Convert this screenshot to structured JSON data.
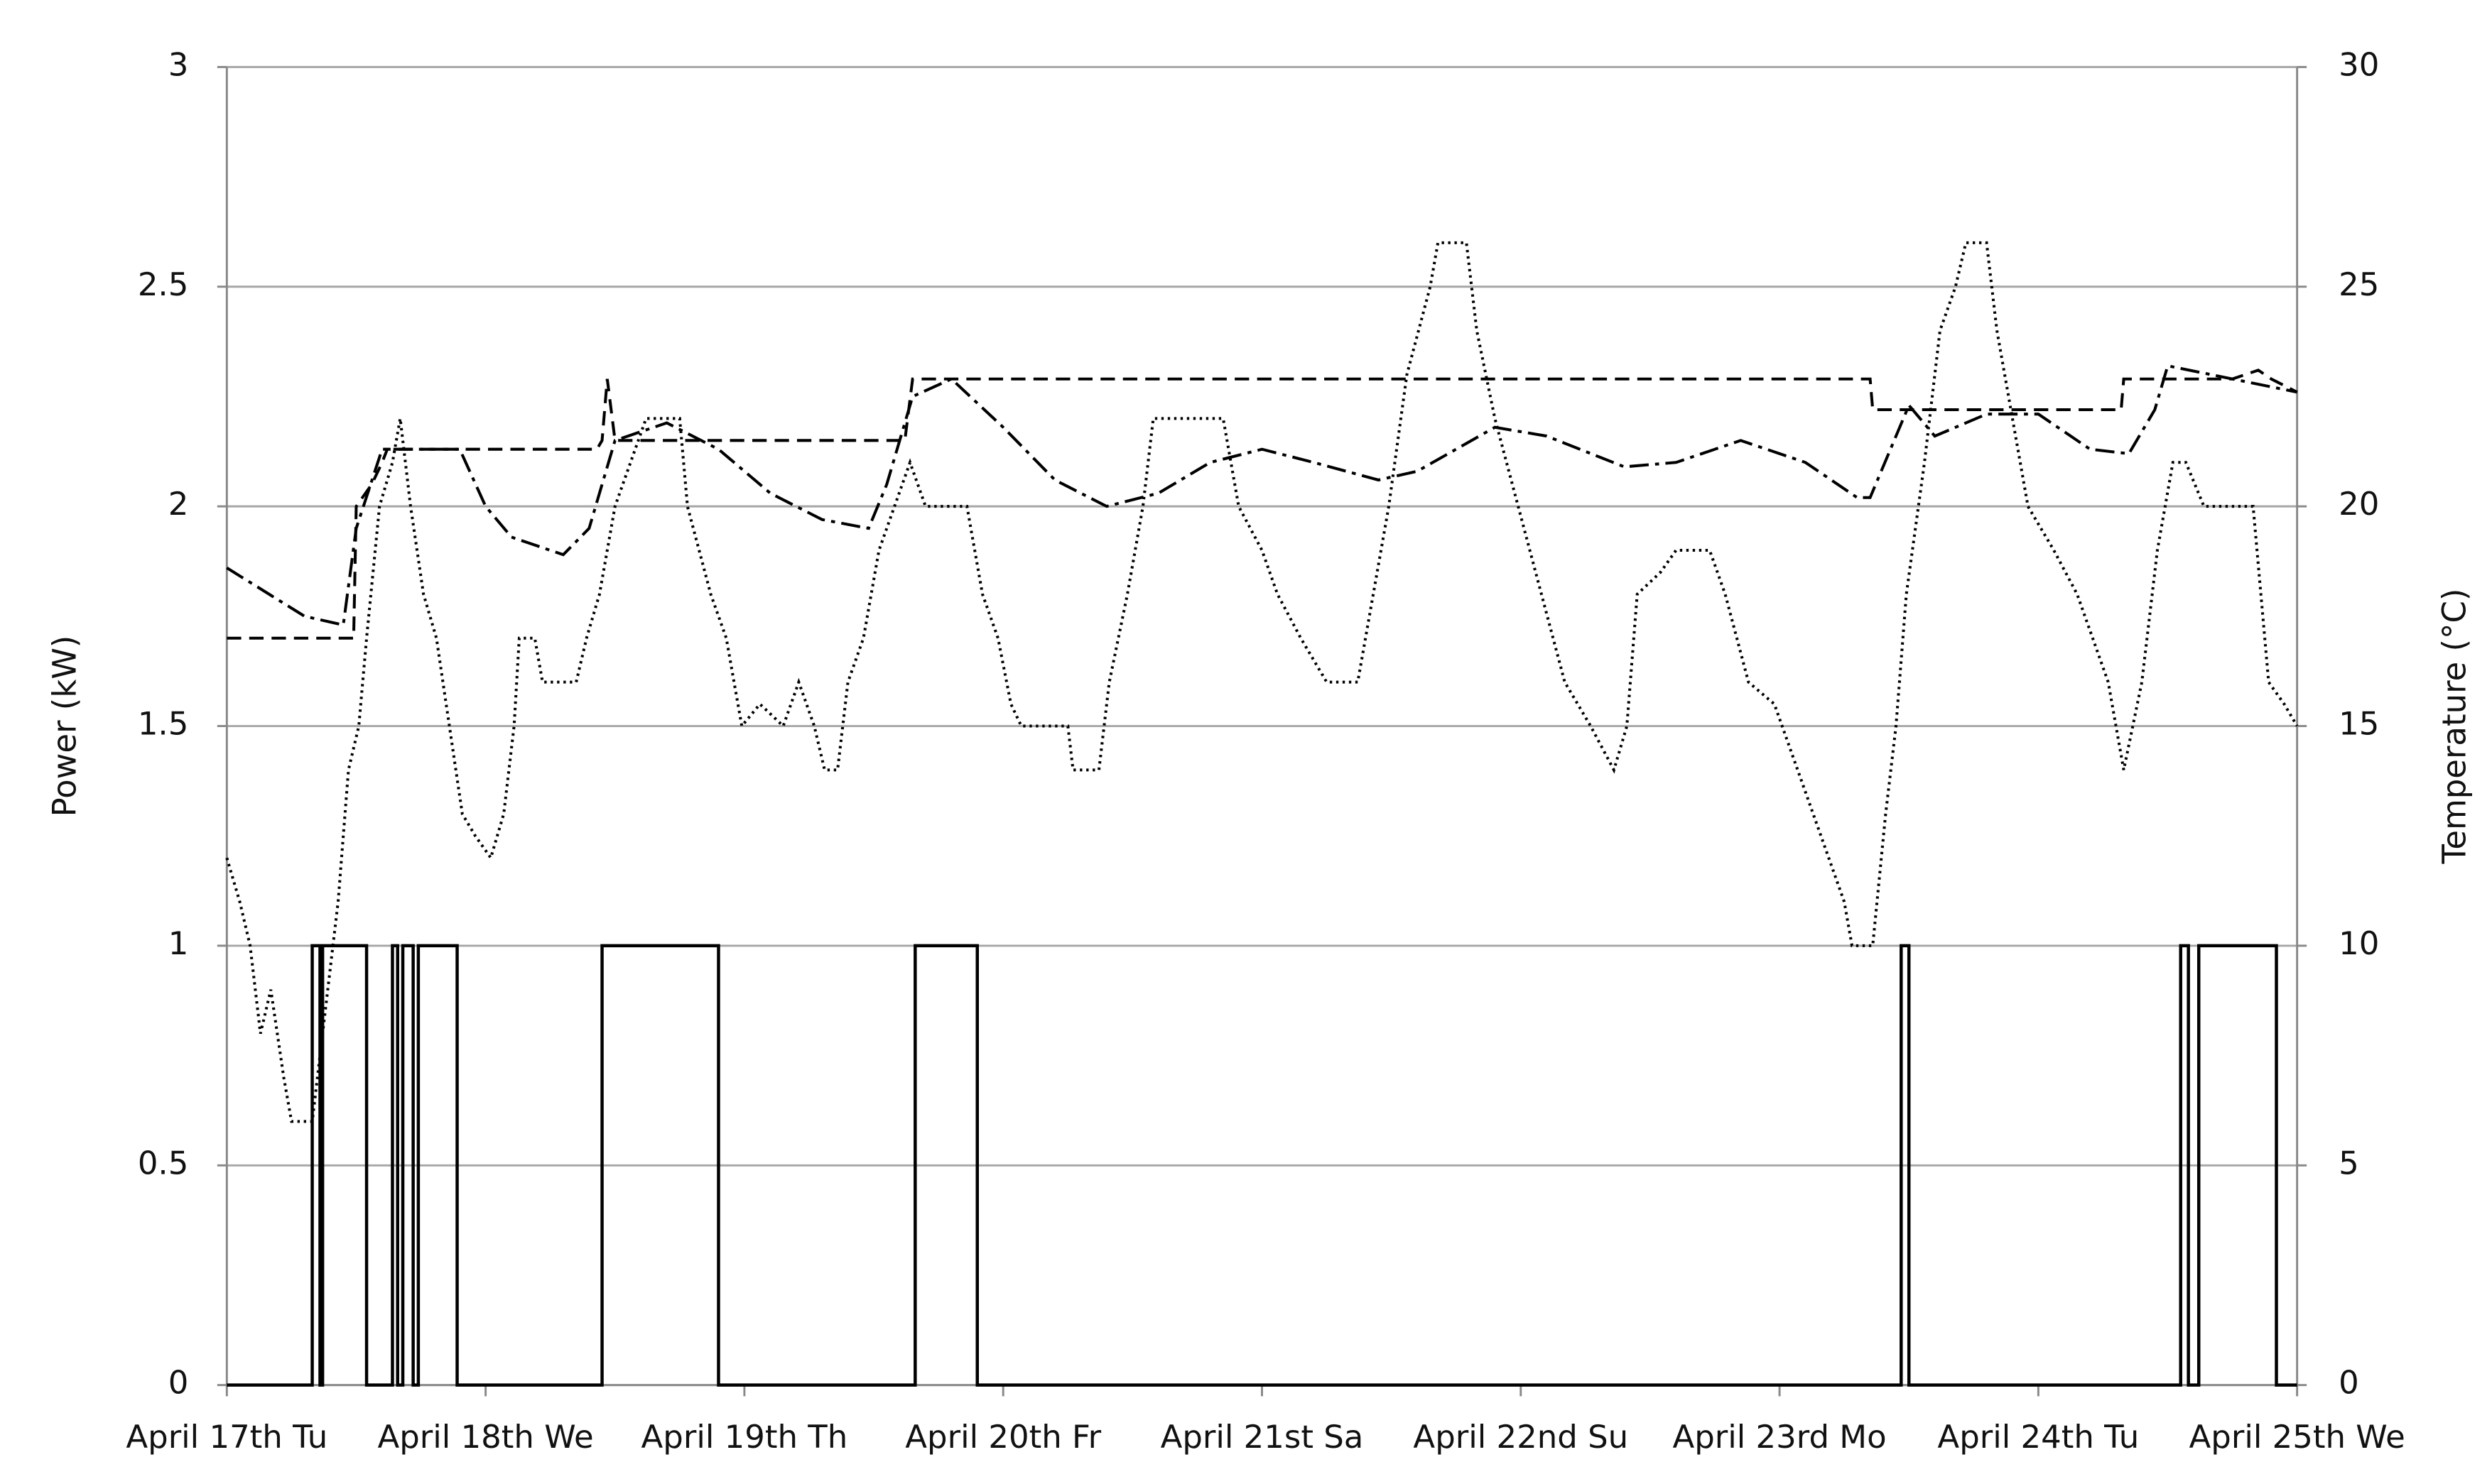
{
  "chart_data": {
    "type": "line",
    "xlabel": null,
    "ylabel": "Power (kW)",
    "y2label": "Temperature (°C)",
    "xlim": [
      0,
      8
    ],
    "xticks": [
      {
        "value": 0,
        "label": "April 17th Tu"
      },
      {
        "value": 1,
        "label": "April 18th We"
      },
      {
        "value": 2,
        "label": "April 19th Th"
      },
      {
        "value": 3,
        "label": "April 20th Fr"
      },
      {
        "value": 4,
        "label": "April 21st Sa"
      },
      {
        "value": 5,
        "label": "April 22nd Su"
      },
      {
        "value": 6,
        "label": "April 23rd Mo"
      },
      {
        "value": 7,
        "label": "April 24th Tu"
      },
      {
        "value": 8,
        "label": "April 25th We"
      }
    ],
    "ylim": [
      0,
      3
    ],
    "yticks": [
      0,
      0.5,
      1,
      1.5,
      2,
      2.5,
      3
    ],
    "y2lim": [
      0,
      30
    ],
    "y2ticks": [
      0,
      5,
      10,
      15,
      20,
      25,
      30
    ],
    "grid": true,
    "series": [
      {
        "color": "#000000",
        "style": "solid",
        "axis": "y",
        "x": [
          0,
          0.33,
          0.33,
          0.36,
          0.36,
          0.37,
          0.37,
          0.54,
          0.54,
          0.64,
          0.64,
          0.66,
          0.66,
          0.68,
          0.68,
          0.72,
          0.72,
          0.74,
          0.74,
          0.89,
          0.89,
          1.45,
          1.45,
          1.9,
          1.9,
          2.66,
          2.66,
          2.9,
          2.9,
          6.47,
          6.47,
          6.5,
          6.5,
          7.55,
          7.55,
          7.58,
          7.58,
          7.62,
          7.62,
          7.92,
          7.92,
          8
        ],
        "values": [
          0,
          0,
          1,
          1,
          0,
          0,
          1,
          1,
          0,
          0,
          1,
          1,
          0,
          0,
          1,
          1,
          0,
          0,
          1,
          1,
          0,
          0,
          1,
          1,
          0,
          0,
          1,
          1,
          0,
          0,
          1,
          1,
          0,
          0,
          1,
          1,
          0,
          0,
          1,
          1,
          0,
          0
        ]
      },
      {
        "color": "#000000",
        "style": "dotted",
        "axis": "y2",
        "x": [
          0,
          0.05,
          0.09,
          0.13,
          0.17,
          0.22,
          0.25,
          0.33,
          0.39,
          0.43,
          0.47,
          0.51,
          0.54,
          0.59,
          0.64,
          0.67,
          0.71,
          0.76,
          0.81,
          0.86,
          0.91,
          0.96,
          1.02,
          1.07,
          1.11,
          1.13,
          1.19,
          1.22,
          1.35,
          1.39,
          1.44,
          1.5,
          1.56,
          1.62,
          1.75,
          1.78,
          1.87,
          1.93,
          1.99,
          2.06,
          2.15,
          2.21,
          2.27,
          2.31,
          2.36,
          2.4,
          2.46,
          2.52,
          2.58,
          2.64,
          2.7,
          2.86,
          2.92,
          2.98,
          3.03,
          3.07,
          3.25,
          3.27,
          3.37,
          3.41,
          3.48,
          3.54,
          3.58,
          3.85,
          3.91,
          4.0,
          4.06,
          4.15,
          4.25,
          4.37,
          4.43,
          4.49,
          4.56,
          4.65,
          4.68,
          4.79,
          4.83,
          4.9,
          4.99,
          5.08,
          5.17,
          5.27,
          5.36,
          5.41,
          5.45,
          5.54,
          5.6,
          5.73,
          5.79,
          5.88,
          5.98,
          6.07,
          6.13,
          6.19,
          6.25,
          6.28,
          6.36,
          6.41,
          6.45,
          6.49,
          6.56,
          6.62,
          6.68,
          6.72,
          6.8,
          6.84,
          6.9,
          6.96,
          7.06,
          7.15,
          7.21,
          7.27,
          7.33,
          7.4,
          7.46,
          7.52,
          7.57,
          7.64,
          7.83,
          7.86,
          7.89,
          7.95,
          8
        ],
        "values": [
          12,
          11,
          10,
          8,
          9,
          7,
          6,
          6,
          9,
          11,
          14,
          15,
          17,
          20,
          21,
          22,
          20,
          18,
          17,
          15,
          13,
          12.5,
          12,
          13,
          15,
          17,
          17,
          16,
          16,
          17,
          18,
          20,
          21,
          22,
          22,
          20,
          18,
          17,
          15,
          15.5,
          15,
          16,
          15,
          14,
          14,
          16,
          17,
          19,
          20,
          21,
          20,
          20,
          18,
          17,
          15.5,
          15,
          15,
          14,
          14,
          16,
          18,
          20,
          22,
          22,
          20,
          19,
          18,
          17,
          16,
          16,
          18,
          20,
          23,
          25,
          26,
          26,
          24,
          22,
          20,
          18,
          16,
          15,
          14,
          15,
          18,
          18.5,
          19,
          19,
          18,
          16,
          15.5,
          14,
          13,
          12,
          11,
          10,
          10,
          13,
          15,
          18,
          21,
          24,
          25,
          26,
          26,
          24,
          22,
          20,
          19,
          18,
          17,
          16,
          14,
          16,
          19,
          21,
          21,
          20,
          20,
          18,
          16,
          15.5,
          15
        ]
      },
      {
        "color": "#000000",
        "style": "dashed",
        "axis": "y2",
        "x": [
          0,
          0.49,
          0.5,
          0.56,
          0.6,
          0.62,
          1.43,
          1.45,
          1.47,
          1.5,
          2.62,
          2.65,
          6.35,
          6.36,
          7.32,
          7.33,
          7.75,
          7.85,
          7.9,
          8
        ],
        "values": [
          17,
          17,
          20,
          20.5,
          21,
          21.3,
          21.3,
          21.5,
          22.9,
          21.5,
          21.5,
          22.9,
          22.9,
          22.2,
          22.2,
          22.9,
          22.9,
          23.1,
          22.9,
          22.6
        ]
      },
      {
        "color": "#000000",
        "style": "dashdot",
        "axis": "y2",
        "x": [
          0,
          0.3,
          0.45,
          0.5,
          0.6,
          0.9,
          1.0,
          1.1,
          1.3,
          1.4,
          1.5,
          1.7,
          1.9,
          2.1,
          2.3,
          2.48,
          2.55,
          2.65,
          2.8,
          3.0,
          3.2,
          3.4,
          3.6,
          3.8,
          4.0,
          4.2,
          4.45,
          4.6,
          4.9,
          5.1,
          5.4,
          5.6,
          5.85,
          6.1,
          6.3,
          6.35,
          6.5,
          6.6,
          6.8,
          7.0,
          7.2,
          7.35,
          7.45,
          7.5,
          8
        ],
        "values": [
          18.6,
          17.5,
          17.3,
          19.5,
          21.3,
          21.3,
          20,
          19.3,
          18.9,
          19.5,
          21.5,
          21.9,
          21.3,
          20.3,
          19.7,
          19.5,
          20.5,
          22.5,
          22.9,
          21.8,
          20.6,
          20,
          20.3,
          21,
          21.3,
          21,
          20.6,
          20.8,
          21.8,
          21.6,
          20.9,
          21,
          21.5,
          21,
          20.2,
          20.2,
          22.3,
          21.6,
          22.1,
          22.1,
          21.3,
          21.2,
          22.2,
          23.2,
          22.6
        ]
      }
    ]
  }
}
